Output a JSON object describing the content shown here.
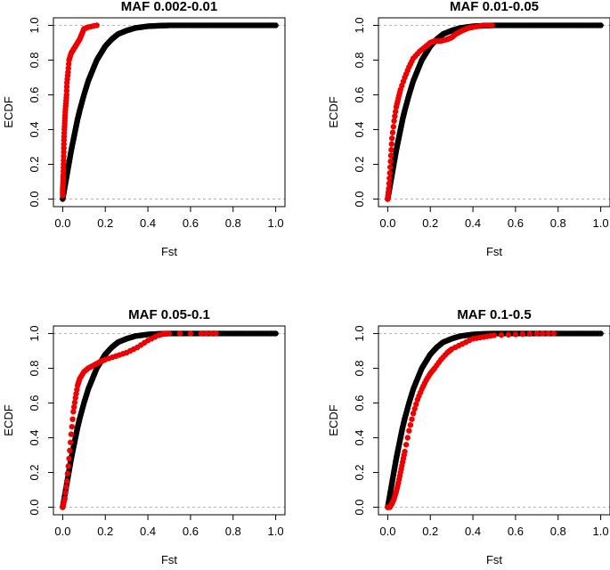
{
  "figure": {
    "title": ""
  },
  "chart_data": [
    {
      "type": "scatter",
      "title": "MAF 0.002-0.01",
      "xlabel": "Fst",
      "ylabel": "ECDF",
      "xlim": [
        0,
        1
      ],
      "ylim": [
        0,
        1
      ],
      "xticks": [
        0,
        0.2,
        0.4,
        0.6,
        0.8,
        1
      ],
      "xtick_labels": [
        "0.0",
        "0.2",
        "0.4",
        "0.6",
        "0.8",
        "1.0"
      ],
      "yticks": [
        0,
        0.2,
        0.4,
        0.6,
        0.8,
        1
      ],
      "ytick_labels": [
        "0.0",
        "0.2",
        "0.4",
        "0.6",
        "0.8",
        "1.0"
      ],
      "reference_lines": [
        0,
        1
      ],
      "series": [
        {
          "color": "#000000",
          "x": [
            0.0,
            0.01,
            0.02,
            0.03,
            0.04,
            0.05,
            0.06,
            0.07,
            0.08,
            0.1,
            0.12,
            0.14,
            0.16,
            0.18,
            0.2,
            0.23,
            0.26,
            0.3,
            0.34,
            0.4,
            0.45,
            0.5,
            0.6,
            0.7,
            0.8,
            0.9,
            1.0
          ],
          "y": [
            0.0,
            0.07,
            0.14,
            0.21,
            0.28,
            0.34,
            0.4,
            0.46,
            0.51,
            0.6,
            0.68,
            0.74,
            0.8,
            0.84,
            0.88,
            0.92,
            0.95,
            0.97,
            0.985,
            0.995,
            0.998,
            1.0,
            1.0,
            1.0,
            1.0,
            1.0,
            1.0
          ]
        },
        {
          "color": "#ee0000",
          "x": [
            0.0,
            0.0,
            0.002,
            0.003,
            0.004,
            0.005,
            0.006,
            0.008,
            0.01,
            0.012,
            0.015,
            0.018,
            0.02,
            0.025,
            0.03,
            0.04,
            0.05,
            0.06,
            0.07,
            0.08,
            0.09,
            0.1,
            0.12,
            0.16
          ],
          "y": [
            0.02,
            0.06,
            0.1,
            0.14,
            0.2,
            0.27,
            0.34,
            0.4,
            0.45,
            0.5,
            0.55,
            0.6,
            0.67,
            0.73,
            0.8,
            0.84,
            0.86,
            0.88,
            0.9,
            0.92,
            0.95,
            0.98,
            0.99,
            1.0
          ]
        }
      ]
    },
    {
      "type": "scatter",
      "title": "MAF 0.01-0.05",
      "xlabel": "Fst",
      "ylabel": "ECDF",
      "xlim": [
        0,
        1
      ],
      "ylim": [
        0,
        1
      ],
      "xticks": [
        0,
        0.2,
        0.4,
        0.6,
        0.8,
        1
      ],
      "xtick_labels": [
        "0.0",
        "0.2",
        "0.4",
        "0.6",
        "0.8",
        "1.0"
      ],
      "yticks": [
        0,
        0.2,
        0.4,
        0.6,
        0.8,
        1
      ],
      "ytick_labels": [
        "0.0",
        "0.2",
        "0.4",
        "0.6",
        "0.8",
        "1.0"
      ],
      "reference_lines": [
        0,
        1
      ],
      "series": [
        {
          "color": "#000000",
          "x": [
            0.0,
            0.01,
            0.02,
            0.03,
            0.04,
            0.05,
            0.06,
            0.07,
            0.08,
            0.1,
            0.12,
            0.14,
            0.16,
            0.18,
            0.2,
            0.23,
            0.26,
            0.3,
            0.34,
            0.4,
            0.45,
            0.5,
            0.6,
            0.7,
            0.8,
            0.9,
            1.0
          ],
          "y": [
            0.0,
            0.07,
            0.14,
            0.21,
            0.28,
            0.34,
            0.4,
            0.46,
            0.51,
            0.6,
            0.68,
            0.74,
            0.8,
            0.84,
            0.88,
            0.92,
            0.95,
            0.97,
            0.985,
            0.995,
            0.998,
            1.0,
            1.0,
            1.0,
            1.0,
            1.0,
            1.0
          ]
        },
        {
          "color": "#ee0000",
          "x": [
            0.0,
            0.005,
            0.01,
            0.015,
            0.02,
            0.03,
            0.04,
            0.05,
            0.06,
            0.08,
            0.1,
            0.12,
            0.15,
            0.18,
            0.2,
            0.22,
            0.25,
            0.28,
            0.3,
            0.32,
            0.35,
            0.38,
            0.4,
            0.45,
            0.49
          ],
          "y": [
            0.0,
            0.06,
            0.15,
            0.25,
            0.35,
            0.45,
            0.53,
            0.58,
            0.63,
            0.7,
            0.76,
            0.81,
            0.85,
            0.88,
            0.9,
            0.91,
            0.91,
            0.92,
            0.93,
            0.95,
            0.97,
            0.985,
            0.99,
            1.0,
            1.0
          ]
        }
      ]
    },
    {
      "type": "scatter",
      "title": "MAF 0.05-0.1",
      "xlabel": "Fst",
      "ylabel": "ECDF",
      "xlim": [
        0,
        1
      ],
      "ylim": [
        0,
        1
      ],
      "xticks": [
        0,
        0.2,
        0.4,
        0.6,
        0.8,
        1
      ],
      "xtick_labels": [
        "0.0",
        "0.2",
        "0.4",
        "0.6",
        "0.8",
        "1.0"
      ],
      "yticks": [
        0,
        0.2,
        0.4,
        0.6,
        0.8,
        1
      ],
      "ytick_labels": [
        "0.0",
        "0.2",
        "0.4",
        "0.6",
        "0.8",
        "1.0"
      ],
      "reference_lines": [
        0,
        1
      ],
      "series": [
        {
          "color": "#000000",
          "x": [
            0.0,
            0.01,
            0.02,
            0.03,
            0.04,
            0.05,
            0.06,
            0.07,
            0.08,
            0.1,
            0.12,
            0.14,
            0.16,
            0.18,
            0.2,
            0.23,
            0.26,
            0.3,
            0.34,
            0.4,
            0.45,
            0.5,
            0.6,
            0.7,
            0.8,
            0.9,
            1.0
          ],
          "y": [
            0.0,
            0.07,
            0.14,
            0.21,
            0.28,
            0.34,
            0.4,
            0.46,
            0.51,
            0.6,
            0.68,
            0.74,
            0.8,
            0.84,
            0.88,
            0.92,
            0.95,
            0.97,
            0.985,
            0.995,
            0.998,
            1.0,
            1.0,
            1.0,
            1.0,
            1.0,
            1.0
          ]
        },
        {
          "color": "#ee0000",
          "x": [
            0.0,
            0.01,
            0.02,
            0.03,
            0.04,
            0.05,
            0.06,
            0.07,
            0.08,
            0.1,
            0.12,
            0.15,
            0.18,
            0.2,
            0.25,
            0.3,
            0.35,
            0.4,
            0.45,
            0.48,
            0.5,
            0.65,
            0.72
          ],
          "y": [
            0.0,
            0.05,
            0.15,
            0.28,
            0.42,
            0.55,
            0.63,
            0.7,
            0.74,
            0.78,
            0.8,
            0.82,
            0.84,
            0.85,
            0.87,
            0.89,
            0.92,
            0.96,
            0.99,
            1.0,
            1.0,
            1.0,
            1.0
          ]
        }
      ]
    },
    {
      "type": "scatter",
      "title": "MAF 0.1-0.5",
      "xlabel": "Fst",
      "ylabel": "ECDF",
      "xlim": [
        0,
        1
      ],
      "ylim": [
        0,
        1
      ],
      "xticks": [
        0,
        0.2,
        0.4,
        0.6,
        0.8,
        1
      ],
      "xtick_labels": [
        "0.0",
        "0.2",
        "0.4",
        "0.6",
        "0.8",
        "1.0"
      ],
      "yticks": [
        0,
        0.2,
        0.4,
        0.6,
        0.8,
        1
      ],
      "ytick_labels": [
        "0.0",
        "0.2",
        "0.4",
        "0.6",
        "0.8",
        "1.0"
      ],
      "reference_lines": [
        0,
        1
      ],
      "series": [
        {
          "color": "#000000",
          "x": [
            0.0,
            0.01,
            0.02,
            0.03,
            0.04,
            0.05,
            0.06,
            0.07,
            0.08,
            0.1,
            0.12,
            0.14,
            0.16,
            0.18,
            0.2,
            0.23,
            0.26,
            0.3,
            0.34,
            0.4,
            0.45,
            0.5,
            0.6,
            0.7,
            0.8,
            0.9,
            1.0
          ],
          "y": [
            0.0,
            0.07,
            0.14,
            0.21,
            0.28,
            0.34,
            0.4,
            0.46,
            0.51,
            0.6,
            0.68,
            0.74,
            0.8,
            0.84,
            0.88,
            0.92,
            0.95,
            0.97,
            0.985,
            0.995,
            0.998,
            1.0,
            1.0,
            1.0,
            1.0,
            1.0,
            1.0
          ]
        },
        {
          "color": "#ee0000",
          "x": [
            0.0,
            0.01,
            0.02,
            0.03,
            0.04,
            0.05,
            0.06,
            0.07,
            0.08,
            0.1,
            0.12,
            0.14,
            0.16,
            0.18,
            0.2,
            0.22,
            0.25,
            0.28,
            0.3,
            0.35,
            0.4,
            0.45,
            0.5,
            0.6,
            0.7,
            0.78
          ],
          "y": [
            0.0,
            0.0,
            0.02,
            0.05,
            0.09,
            0.14,
            0.2,
            0.26,
            0.32,
            0.44,
            0.54,
            0.62,
            0.68,
            0.73,
            0.77,
            0.8,
            0.85,
            0.89,
            0.91,
            0.94,
            0.97,
            0.98,
            0.99,
            0.995,
            1.0,
            1.0
          ]
        }
      ]
    }
  ]
}
